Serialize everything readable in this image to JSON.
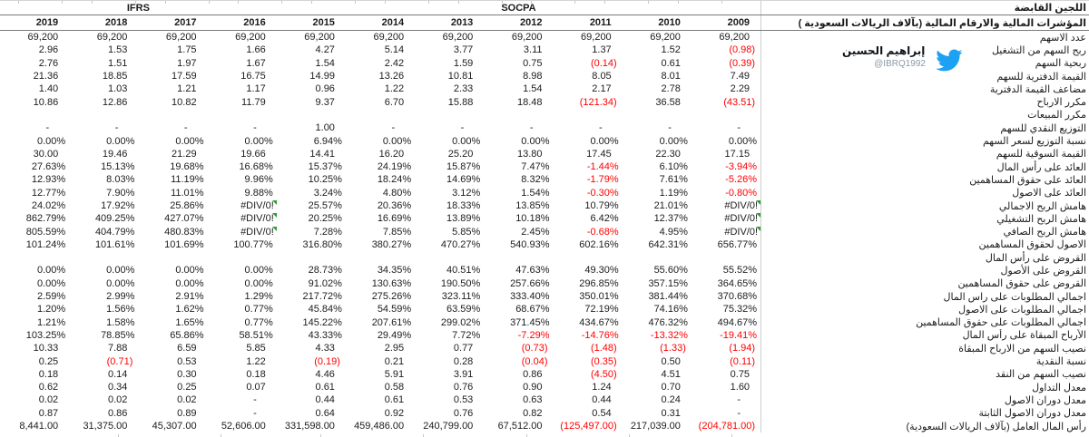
{
  "header": {
    "title": "اللجين القابضة",
    "subtitle": "المؤشرات المالية والارقام المالية  (بآلاف الريالات السعودية )",
    "standards": [
      {
        "label": "IFRS",
        "year_span": 4
      },
      {
        "label": "SOCPA",
        "year_span": 7
      }
    ],
    "years": [
      "2019",
      "2018",
      "2017",
      "2016",
      "2015",
      "2014",
      "2013",
      "2012",
      "2011",
      "2010",
      "2009"
    ]
  },
  "attribution": {
    "name": "إبراهيم الحسين",
    "handle": "@IBRQ1992",
    "icon": "twitter-bird-icon",
    "brand_color": "#1da1f2"
  },
  "colors": {
    "negative": "#ff0000",
    "error_indicator": "#2aa12e",
    "grid_strong": "#7a7a7a",
    "grid_light": "#cccccc"
  },
  "table": {
    "error_value": "#DIV/0!",
    "rows": [
      {
        "label": "عدد الاسهم",
        "values": [
          "69,200",
          "69,200",
          "69,200",
          "69,200",
          "69,200",
          "69,200",
          "69,200",
          "69,200",
          "69,200",
          "69,200",
          "69,200"
        ]
      },
      {
        "label": "ربح السهم من التشغيل",
        "values": [
          "2.96",
          "1.53",
          "1.75",
          "1.66",
          "4.27",
          "5.14",
          "3.77",
          "3.11",
          "1.37",
          "1.52",
          "(0.98)"
        ]
      },
      {
        "label": "ربحية السهم",
        "values": [
          "2.76",
          "1.51",
          "1.97",
          "1.67",
          "1.54",
          "2.42",
          "1.59",
          "0.75",
          "(0.14)",
          "0.61",
          "(0.39)"
        ]
      },
      {
        "label": "القيمة الدفترية للسهم",
        "values": [
          "21.36",
          "18.85",
          "17.59",
          "16.75",
          "14.99",
          "13.26",
          "10.81",
          "8.98",
          "8.05",
          "8.01",
          "7.49"
        ]
      },
      {
        "label": "مضاعف القيمة الدفترية",
        "values": [
          "1.40",
          "1.03",
          "1.21",
          "1.17",
          "0.96",
          "1.22",
          "2.33",
          "1.54",
          "2.17",
          "2.78",
          "2.29"
        ]
      },
      {
        "label": "مكرر الارباح",
        "values": [
          "10.86",
          "12.86",
          "10.82",
          "11.79",
          "9.37",
          "6.70",
          "15.88",
          "18.48",
          "(121.34)",
          "36.58",
          "(43.51)"
        ]
      },
      {
        "label": "مكرر المبيعات",
        "values": [
          "",
          "",
          "",
          "",
          "",
          "",
          "",
          "",
          "",
          "",
          ""
        ]
      },
      {
        "label": "التوزيع النقدي للسهم",
        "values": [
          "-",
          "-",
          "-",
          "-",
          "1.00",
          "-",
          "-",
          "-",
          "-",
          "-",
          "-"
        ]
      },
      {
        "label": "نسبة التوزيع لسعر السهم",
        "values": [
          "0.00%",
          "0.00%",
          "0.00%",
          "0.00%",
          "6.94%",
          "0.00%",
          "0.00%",
          "0.00%",
          "0.00%",
          "0.00%",
          "0.00%"
        ]
      },
      {
        "label": "القيمة السوقية للسهم",
        "values": [
          "30.00",
          "19.46",
          "21.29",
          "19.66",
          "14.41",
          "16.20",
          "25.20",
          "13.80",
          "17.45",
          "22.30",
          "17.15"
        ]
      },
      {
        "label": "العائد على رأس المال",
        "values": [
          "27.63%",
          "15.13%",
          "19.68%",
          "16.68%",
          "15.37%",
          "24.19%",
          "15.87%",
          "7.47%",
          "-1.44%",
          "6.10%",
          "-3.94%"
        ]
      },
      {
        "label": "العائد على حقوق المساهمين",
        "values": [
          "12.93%",
          "8.03%",
          "11.19%",
          "9.96%",
          "10.25%",
          "18.24%",
          "14.69%",
          "8.32%",
          "-1.79%",
          "7.61%",
          "-5.26%"
        ]
      },
      {
        "label": "العائد على الاصول",
        "values": [
          "12.77%",
          "7.90%",
          "11.01%",
          "9.88%",
          "3.24%",
          "4.80%",
          "3.12%",
          "1.54%",
          "-0.30%",
          "1.19%",
          "-0.80%"
        ]
      },
      {
        "label": "هامش الربح الاجمالي",
        "values": [
          "24.02%",
          "17.92%",
          "25.86%",
          "#DIV/0!",
          "25.57%",
          "20.36%",
          "18.33%",
          "13.85%",
          "10.79%",
          "21.01%",
          "#DIV/0!"
        ]
      },
      {
        "label": "هامش الربح التشغيلي",
        "values": [
          "862.79%",
          "409.25%",
          "427.07%",
          "#DIV/0!",
          "20.25%",
          "16.69%",
          "13.89%",
          "10.18%",
          "6.42%",
          "12.37%",
          "#DIV/0!"
        ]
      },
      {
        "label": "هامش الربح الصافي",
        "values": [
          "805.59%",
          "404.79%",
          "480.83%",
          "#DIV/0!",
          "7.28%",
          "7.85%",
          "5.85%",
          "2.45%",
          "-0.68%",
          "4.95%",
          "#DIV/0!"
        ]
      },
      {
        "label": "الاصول لحقوق المساهمين",
        "values": [
          "101.24%",
          "101.61%",
          "101.69%",
          "100.77%",
          "316.80%",
          "380.27%",
          "470.27%",
          "540.93%",
          "602.16%",
          "642.31%",
          "656.77%"
        ]
      },
      {
        "label": "القروض على رأس المال",
        "values": [
          "",
          "",
          "",
          "",
          "",
          "",
          "",
          "",
          "",
          "",
          ""
        ]
      },
      {
        "label": "القروض على الأصول",
        "values": [
          "0.00%",
          "0.00%",
          "0.00%",
          "0.00%",
          "28.73%",
          "34.35%",
          "40.51%",
          "47.63%",
          "49.30%",
          "55.60%",
          "55.52%"
        ]
      },
      {
        "label": "القروض على حقوق المساهمين",
        "values": [
          "0.00%",
          "0.00%",
          "0.00%",
          "0.00%",
          "91.02%",
          "130.63%",
          "190.50%",
          "257.66%",
          "296.85%",
          "357.15%",
          "364.65%"
        ]
      },
      {
        "label": "اجمالي المطلوبات على راس المال",
        "values": [
          "2.59%",
          "2.99%",
          "2.91%",
          "1.29%",
          "217.72%",
          "275.26%",
          "323.11%",
          "333.40%",
          "350.01%",
          "381.44%",
          "370.68%"
        ]
      },
      {
        "label": "اجمالي المطلوبات على الاصول",
        "values": [
          "1.20%",
          "1.56%",
          "1.62%",
          "0.77%",
          "45.84%",
          "54.59%",
          "63.59%",
          "68.67%",
          "72.19%",
          "74.16%",
          "75.32%"
        ]
      },
      {
        "label": "اجمالي المطلوبات على حقوق المساهمين",
        "values": [
          "1.21%",
          "1.58%",
          "1.65%",
          "0.77%",
          "145.22%",
          "207.61%",
          "299.02%",
          "371.45%",
          "434.67%",
          "476.32%",
          "494.67%"
        ]
      },
      {
        "label": "الأرباح المبقاة على رأس المال",
        "values": [
          "103.25%",
          "78.85%",
          "65.86%",
          "58.51%",
          "43.33%",
          "29.49%",
          "7.72%",
          "-7.29%",
          "-14.76%",
          "-13.32%",
          "-19.41%"
        ]
      },
      {
        "label": "نصيب السهم من الارباح المبقاة",
        "values": [
          "10.33",
          "7.88",
          "6.59",
          "5.85",
          "4.33",
          "2.95",
          "0.77",
          "(0.73)",
          "(1.48)",
          "(1.33)",
          "(1.94)"
        ]
      },
      {
        "label": "نسبة النقدية",
        "values": [
          "0.25",
          "(0.71)",
          "0.53",
          "1.22",
          "(0.19)",
          "0.21",
          "0.28",
          "(0.04)",
          "(0.35)",
          "0.50",
          "(0.11)"
        ]
      },
      {
        "label": "نصيب السهم من النقد",
        "values": [
          "0.18",
          "0.14",
          "0.30",
          "0.18",
          "4.46",
          "5.91",
          "3.91",
          "0.86",
          "(4.50)",
          "4.51",
          "0.75"
        ]
      },
      {
        "label": "معدل التداول",
        "values": [
          "0.62",
          "0.34",
          "0.25",
          "0.07",
          "0.61",
          "0.58",
          "0.76",
          "0.90",
          "1.24",
          "0.70",
          "1.60"
        ]
      },
      {
        "label": "معدل دوران الاصول",
        "values": [
          "0.02",
          "0.02",
          "0.02",
          "-",
          "0.44",
          "0.61",
          "0.53",
          "0.63",
          "0.44",
          "0.24",
          "-"
        ]
      },
      {
        "label": "معدل دوران الاصول الثابتة",
        "values": [
          "0.87",
          "0.86",
          "0.89",
          "-",
          "0.64",
          "0.92",
          "0.76",
          "0.82",
          "0.54",
          "0.31",
          "-"
        ]
      },
      {
        "label": "رأس المال العامل (بآلاف الريالات السعودية)",
        "values": [
          "8,441.00",
          "31,375.00",
          "45,307.00",
          "52,606.00",
          "331,598.00",
          "459,486.00",
          "240,799.00",
          "67,512.00",
          "(125,497.00)",
          "217,039.00",
          "(204,781.00)"
        ]
      }
    ]
  }
}
